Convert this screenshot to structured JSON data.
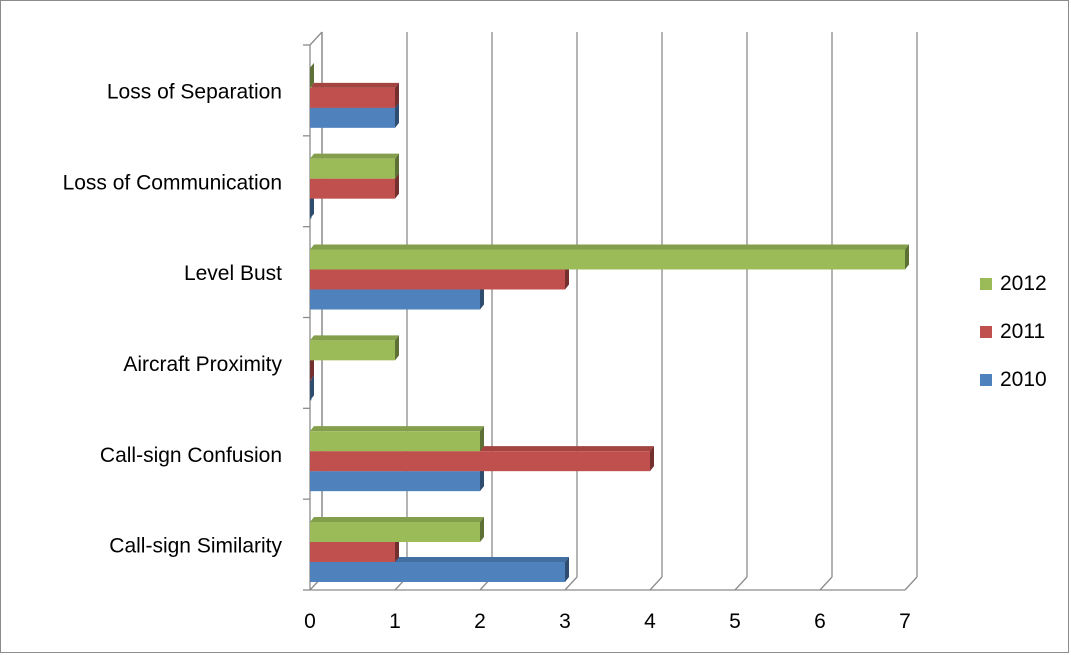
{
  "chart_data": {
    "type": "bar",
    "orientation": "horizontal",
    "categories": [
      "Call-sign Similarity",
      "Call-sign Confusion",
      "Aircraft Proximity",
      "Level Bust",
      "Loss of Communication",
      "Loss of Separation"
    ],
    "series": [
      {
        "name": "2010",
        "color": "#4f81bd",
        "values": [
          3,
          2,
          0,
          2,
          0,
          1
        ]
      },
      {
        "name": "2011",
        "color": "#c0504d",
        "values": [
          1,
          4,
          0,
          3,
          1,
          1
        ]
      },
      {
        "name": "2012",
        "color": "#9bbb59",
        "values": [
          2,
          2,
          1,
          7,
          1,
          0
        ]
      }
    ],
    "xticks": [
      "0",
      "1",
      "2",
      "3",
      "4",
      "5",
      "6",
      "7"
    ],
    "xlim": [
      0,
      7
    ],
    "title": "",
    "xlabel": "",
    "ylabel": "",
    "grid": true,
    "legend_position": "right",
    "legend_order": [
      "2012",
      "2011",
      "2010"
    ]
  }
}
